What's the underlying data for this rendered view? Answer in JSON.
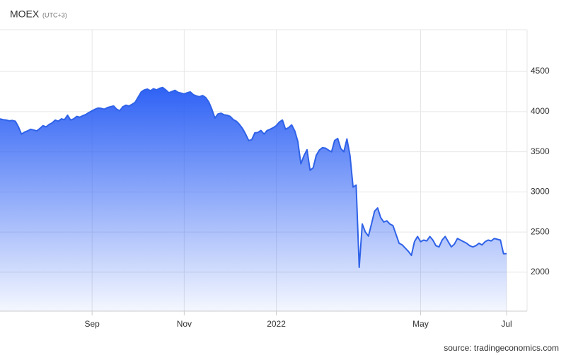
{
  "chart_data": {
    "type": "area",
    "title": "MOEX",
    "subtitle": "(UTC+3)",
    "source": "source: tradingeconomics.com",
    "color": "#2f62e8",
    "grid": true,
    "ylim": [
      1515,
      5020
    ],
    "yticks": [
      2000,
      2500,
      3000,
      3500,
      4000,
      4500
    ],
    "categories": [
      null,
      null,
      null,
      null,
      null,
      null,
      null,
      null,
      null,
      null,
      null,
      null,
      null,
      null,
      null,
      null,
      null,
      null,
      null,
      null,
      null,
      null,
      null,
      null,
      null,
      null,
      null,
      null,
      null,
      null,
      "Sep",
      null,
      null,
      null,
      null,
      null,
      null,
      null,
      null,
      null,
      null,
      null,
      null,
      null,
      null,
      null,
      null,
      null,
      null,
      null,
      null,
      null,
      null,
      null,
      null,
      null,
      null,
      null,
      null,
      null,
      "Nov",
      null,
      null,
      null,
      null,
      null,
      null,
      null,
      null,
      null,
      null,
      null,
      null,
      null,
      null,
      null,
      null,
      null,
      null,
      null,
      null,
      null,
      null,
      null,
      null,
      null,
      null,
      null,
      null,
      null,
      "2022",
      null,
      null,
      null,
      null,
      null,
      null,
      null,
      null,
      null,
      null,
      null,
      null,
      null,
      null,
      null,
      null,
      null,
      null,
      null,
      null,
      null,
      null,
      null,
      null,
      null,
      null,
      null,
      null,
      null,
      null,
      null,
      null,
      null,
      null,
      null,
      null,
      null,
      null,
      null,
      null,
      null,
      null,
      null,
      null,
      null,
      null,
      "May",
      null,
      null,
      null,
      null,
      null,
      null,
      null,
      null,
      null,
      null,
      null,
      null,
      null,
      null,
      null,
      null,
      null,
      null,
      null,
      null,
      null,
      null,
      null,
      null,
      null,
      null,
      null,
      "Jul"
    ],
    "values": [
      3910,
      3900,
      3895,
      3885,
      3890,
      3880,
      3810,
      3720,
      3745,
      3760,
      3780,
      3770,
      3760,
      3790,
      3825,
      3810,
      3840,
      3860,
      3895,
      3880,
      3910,
      3900,
      3955,
      3895,
      3910,
      3940,
      3930,
      3950,
      3965,
      3990,
      4010,
      4030,
      4045,
      4040,
      4030,
      4050,
      4060,
      4070,
      4030,
      4010,
      4060,
      4080,
      4070,
      4090,
      4115,
      4180,
      4245,
      4270,
      4280,
      4260,
      4285,
      4270,
      4290,
      4300,
      4270,
      4235,
      4250,
      4265,
      4240,
      4230,
      4220,
      4235,
      4245,
      4210,
      4195,
      4185,
      4200,
      4175,
      4120,
      4030,
      3920,
      3970,
      3980,
      3960,
      3955,
      3940,
      3900,
      3880,
      3840,
      3790,
      3720,
      3640,
      3650,
      3735,
      3740,
      3765,
      3720,
      3765,
      3780,
      3800,
      3825,
      3870,
      3895,
      3780,
      3800,
      3835,
      3760,
      3630,
      3350,
      3450,
      3525,
      3270,
      3300,
      3455,
      3520,
      3550,
      3545,
      3520,
      3500,
      3640,
      3665,
      3540,
      3500,
      3660,
      3455,
      3060,
      3085,
      2060,
      2600,
      2500,
      2450,
      2600,
      2760,
      2800,
      2680,
      2625,
      2640,
      2600,
      2580,
      2470,
      2360,
      2340,
      2300,
      2260,
      2210,
      2380,
      2445,
      2380,
      2400,
      2390,
      2445,
      2400,
      2330,
      2315,
      2400,
      2445,
      2380,
      2315,
      2350,
      2420,
      2400,
      2380,
      2360,
      2330,
      2315,
      2330,
      2360,
      2340,
      2380,
      2400,
      2390,
      2420,
      2410,
      2400,
      2230,
      2230
    ]
  }
}
